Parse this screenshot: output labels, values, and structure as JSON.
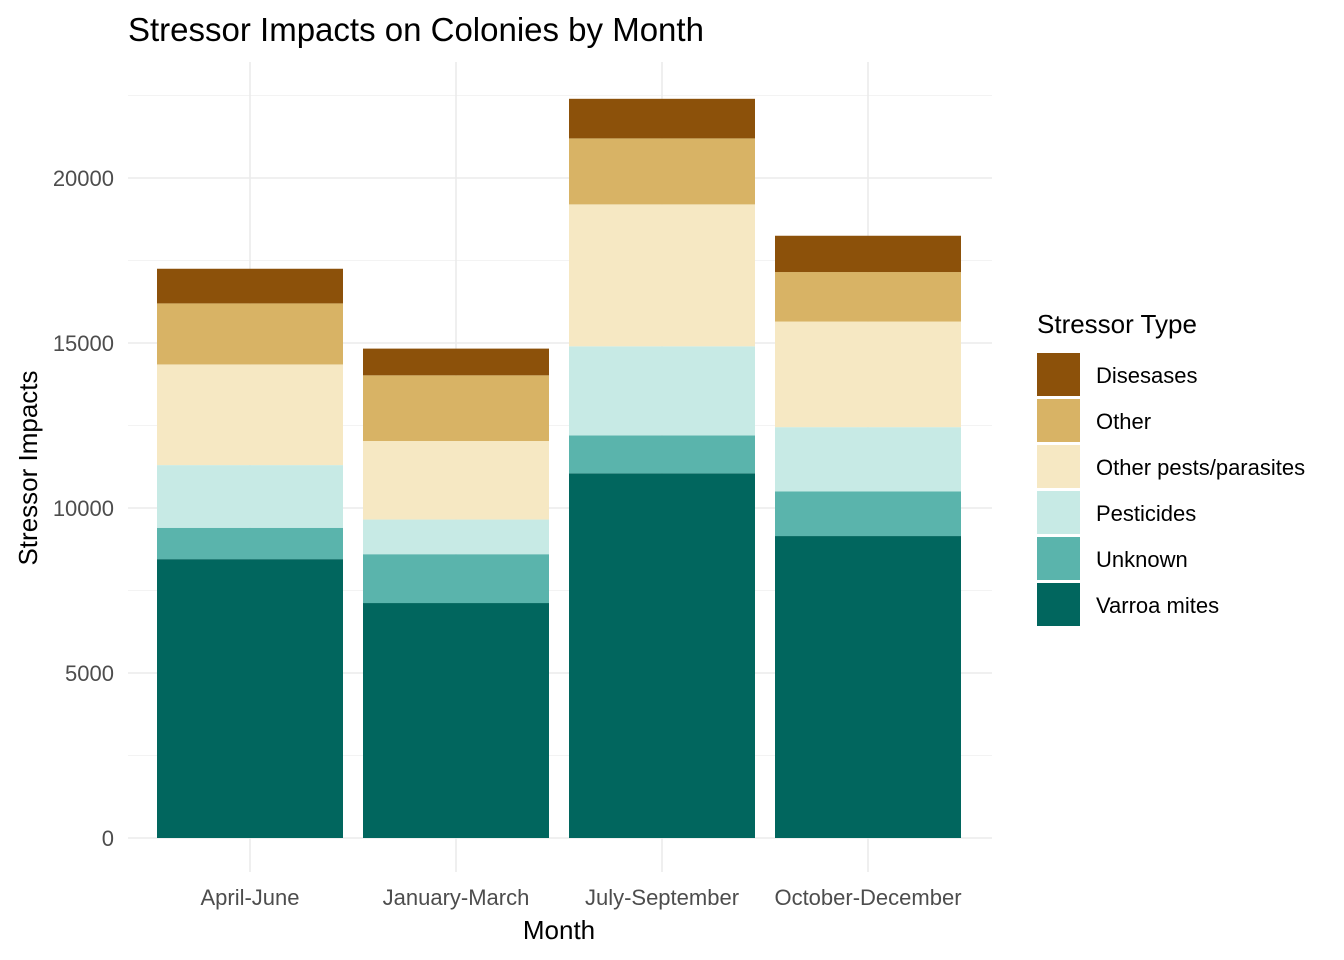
{
  "chart_data": {
    "type": "bar",
    "stacked": true,
    "title": "Stressor Impacts on Colonies by Month",
    "xlabel": "Month",
    "ylabel": "Stressor Impacts",
    "categories": [
      "April-June",
      "January-March",
      "July-September",
      "October-December"
    ],
    "ylim": [
      0,
      24000
    ],
    "yticks": [
      0,
      5000,
      10000,
      15000,
      20000
    ],
    "grid": true,
    "legend": {
      "title": "Stressor Type",
      "position": "right"
    },
    "series": [
      {
        "name": "Varroa mites",
        "color": "#01665e",
        "values": [
          8450,
          7120,
          11050,
          9150
        ]
      },
      {
        "name": "Unknown",
        "color": "#5ab4ac",
        "values": [
          950,
          1480,
          1150,
          1350
        ]
      },
      {
        "name": "Pesticides",
        "color": "#c7eae5",
        "values": [
          1900,
          1050,
          2700,
          1950
        ]
      },
      {
        "name": "Other pests/parasites",
        "color": "#f6e8c3",
        "values": [
          3050,
          2380,
          4300,
          3200
        ]
      },
      {
        "name": "Other",
        "color": "#d8b365",
        "values": [
          1850,
          1990,
          2000,
          1500
        ]
      },
      {
        "name": "Disesases",
        "color": "#8c510a",
        "values": [
          1050,
          810,
          1200,
          1100
        ]
      }
    ]
  }
}
